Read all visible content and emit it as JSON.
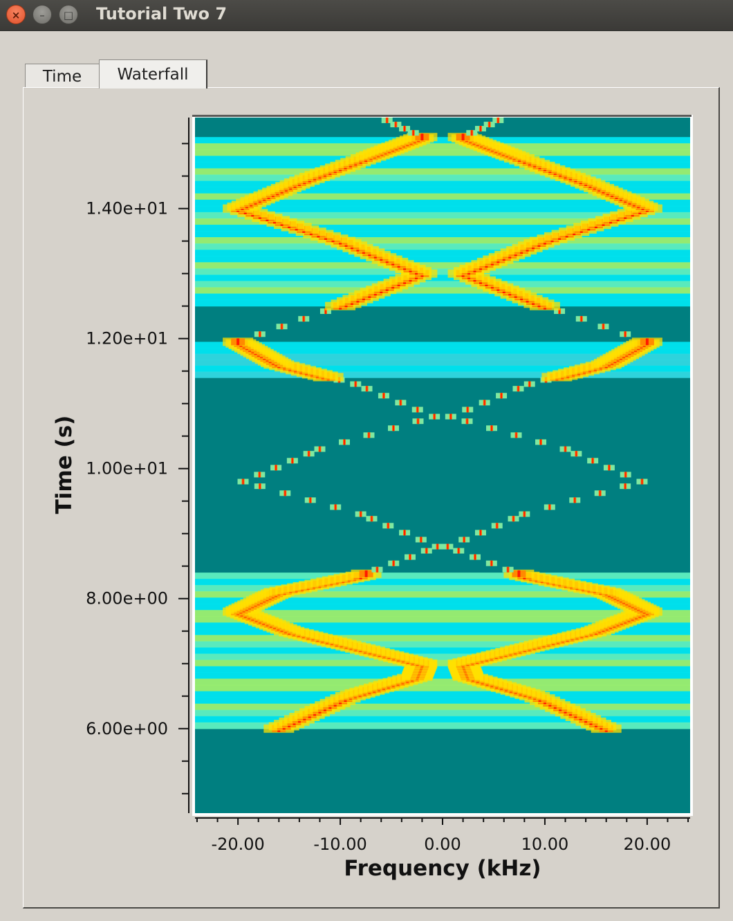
{
  "window": {
    "title": "Tutorial Two 7",
    "controls": {
      "close": "×",
      "minimize": "–",
      "maximize": "□"
    }
  },
  "tabs": [
    {
      "label": "Time",
      "active": false
    },
    {
      "label": "Waterfall",
      "active": true
    }
  ],
  "chart_data": {
    "type": "heatmap",
    "xlabel": "Frequency (kHz)",
    "ylabel": "Time (s)",
    "x_ticks": [
      {
        "value": -20,
        "label": "-20.00"
      },
      {
        "value": -10,
        "label": "-10.00"
      },
      {
        "value": 0,
        "label": "0.00"
      },
      {
        "value": 10,
        "label": "10.00"
      },
      {
        "value": 20,
        "label": "20.00"
      }
    ],
    "y_ticks": [
      {
        "value": 6,
        "label": "6.00e+00"
      },
      {
        "value": 8,
        "label": "8.00e+00"
      },
      {
        "value": 10,
        "label": "1.00e+01"
      },
      {
        "value": 12,
        "label": "1.20e+01"
      },
      {
        "value": 14,
        "label": "1.40e+01"
      }
    ],
    "xlim": [
      -24.2,
      24.2
    ],
    "ylim": [
      4.7,
      15.4
    ],
    "colormap": {
      "background": "#007f80",
      "low": "#00e5f0",
      "mid": "#9cf070",
      "high": "#ffe000",
      "peak": "#ff1a00"
    },
    "bands": [
      {
        "t_start": 6.0,
        "t_end": 8.4,
        "intensity": "high"
      },
      {
        "t_start": 11.4,
        "t_end": 11.95,
        "intensity": "medium"
      },
      {
        "t_start": 12.5,
        "t_end": 15.1,
        "intensity": "high"
      }
    ],
    "chirp_peaks": [
      {
        "t": 6.0,
        "f_abs": 16.0
      },
      {
        "t": 6.5,
        "f_abs": 9.0
      },
      {
        "t": 6.8,
        "f_abs": 2.5
      },
      {
        "t": 7.0,
        "f_abs": 2.0
      },
      {
        "t": 7.25,
        "f_abs": 8.5
      },
      {
        "t": 7.5,
        "f_abs": 15.0
      },
      {
        "t": 7.8,
        "f_abs": 20.0
      },
      {
        "t": 8.1,
        "f_abs": 16.0
      },
      {
        "t": 8.35,
        "f_abs": 8.0
      },
      {
        "t": 8.8,
        "f_abs": 0.5
      },
      {
        "t": 9.3,
        "f_abs": 8.0
      },
      {
        "t": 9.8,
        "f_abs": 19.5
      },
      {
        "t": 10.3,
        "f_abs": 12.0
      },
      {
        "t": 10.8,
        "f_abs": 0.8
      },
      {
        "t": 11.3,
        "f_abs": 8.5
      },
      {
        "t": 11.6,
        "f_abs": 16.0
      },
      {
        "t": 11.95,
        "f_abs": 20.0
      },
      {
        "t": 12.5,
        "f_abs": 10.0
      },
      {
        "t": 13.0,
        "f_abs": 2.0
      },
      {
        "t": 13.5,
        "f_abs": 10.0
      },
      {
        "t": 14.0,
        "f_abs": 20.0
      },
      {
        "t": 14.4,
        "f_abs": 14.0
      },
      {
        "t": 14.8,
        "f_abs": 7.0
      },
      {
        "t": 15.1,
        "f_abs": 2.0
      },
      {
        "t": 15.4,
        "f_abs": 6.0
      }
    ]
  }
}
